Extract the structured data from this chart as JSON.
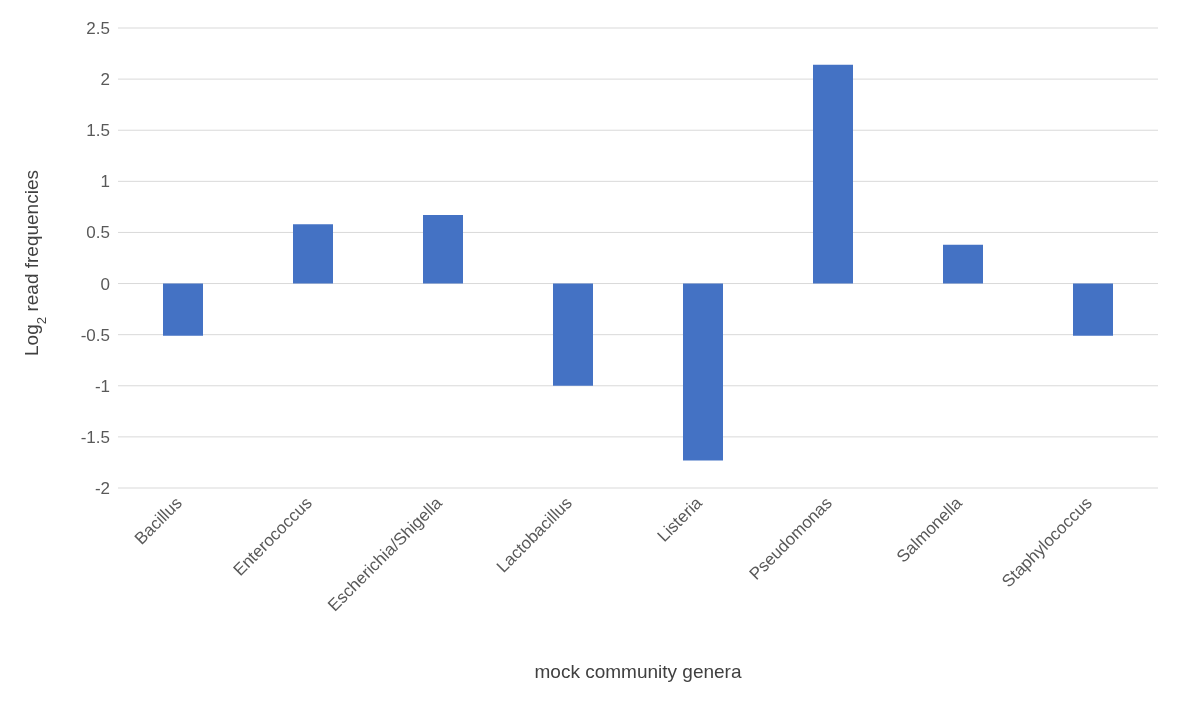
{
  "chart_data": {
    "type": "bar",
    "xlabel": "mock community genera",
    "ylabel": "Log$_{2}$ read frequencies",
    "categories": [
      "Bacillus",
      "Enterococcus",
      "Escherichia/Shigella",
      "Lactobacillus",
      "Listeria",
      "Pseudomonas",
      "Salmonella",
      "Staphylococcus"
    ],
    "values": [
      -0.51,
      0.58,
      0.67,
      -1.0,
      -1.73,
      2.14,
      0.38,
      -0.51
    ],
    "color": "#4472c4",
    "ylim": [
      -2,
      2.5
    ],
    "yticks": [
      -2,
      -1.5,
      -1,
      -0.5,
      0,
      0.5,
      1,
      1.5,
      2,
      2.5
    ],
    "grid": "y"
  }
}
